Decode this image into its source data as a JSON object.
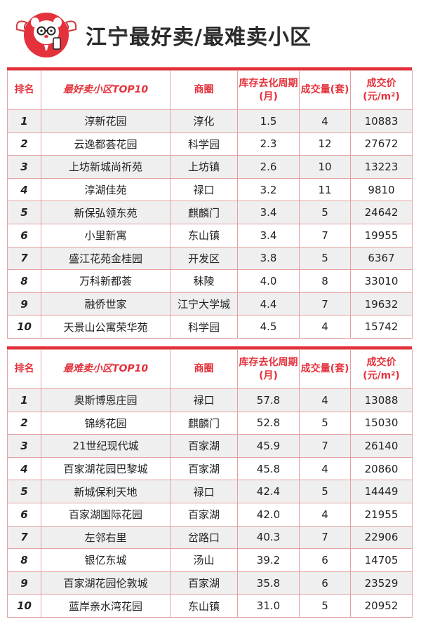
{
  "header": {
    "title": "江宁最好卖/最难卖小区"
  },
  "colors": {
    "accent": "#e4323c",
    "border": "#e4a0a0",
    "stripe": "#efefef"
  },
  "best_table": {
    "headers": {
      "rank": "排名",
      "name": "最好卖小区TOP10",
      "area": "商圈",
      "cycle": "库存去化周期(月)",
      "volume": "成交量(套)",
      "price": "成交价(元/m²)"
    },
    "rows": [
      {
        "rank": "1",
        "name": "淳新花园",
        "area": "淳化",
        "cycle": "1.5",
        "volume": "4",
        "price": "10883"
      },
      {
        "rank": "2",
        "name": "云逸都荟花园",
        "area": "科学园",
        "cycle": "2.3",
        "volume": "12",
        "price": "27672"
      },
      {
        "rank": "3",
        "name": "上坊新城尚祈苑",
        "area": "上坊镇",
        "cycle": "2.6",
        "volume": "10",
        "price": "13223"
      },
      {
        "rank": "4",
        "name": "淳湖佳苑",
        "area": "禄口",
        "cycle": "3.2",
        "volume": "11",
        "price": "9810"
      },
      {
        "rank": "5",
        "name": "新保弘领东苑",
        "area": "麒麟门",
        "cycle": "3.4",
        "volume": "5",
        "price": "24642"
      },
      {
        "rank": "6",
        "name": "小里新寓",
        "area": "东山镇",
        "cycle": "3.4",
        "volume": "7",
        "price": "19955"
      },
      {
        "rank": "7",
        "name": "盛江花苑金桂园",
        "area": "开发区",
        "cycle": "3.8",
        "volume": "5",
        "price": "6367"
      },
      {
        "rank": "8",
        "name": "万科新都荟",
        "area": "秣陵",
        "cycle": "4.0",
        "volume": "8",
        "price": "33010"
      },
      {
        "rank": "9",
        "name": "融侨世家",
        "area": "江宁大学城",
        "cycle": "4.4",
        "volume": "7",
        "price": "19632"
      },
      {
        "rank": "10",
        "name": "天景山公寓荣华苑",
        "area": "科学园",
        "cycle": "4.5",
        "volume": "4",
        "price": "15742"
      }
    ]
  },
  "worst_table": {
    "headers": {
      "rank": "排名",
      "name": "最难卖小区TOP10",
      "area": "商圈",
      "cycle": "库存去化周期(月)",
      "volume": "成交量(套)",
      "price": "成交价(元/m²)"
    },
    "rows": [
      {
        "rank": "1",
        "name": "奥斯博恩庄园",
        "area": "禄口",
        "cycle": "57.8",
        "volume": "4",
        "price": "13088"
      },
      {
        "rank": "2",
        "name": "锦绣花园",
        "area": "麒麟门",
        "cycle": "52.8",
        "volume": "5",
        "price": "15030"
      },
      {
        "rank": "3",
        "name": "21世纪现代城",
        "area": "百家湖",
        "cycle": "45.9",
        "volume": "7",
        "price": "26140"
      },
      {
        "rank": "4",
        "name": "百家湖花园巴黎城",
        "area": "百家湖",
        "cycle": "45.8",
        "volume": "4",
        "price": "20860"
      },
      {
        "rank": "5",
        "name": "新城保利天地",
        "area": "禄口",
        "cycle": "42.4",
        "volume": "5",
        "price": "14449"
      },
      {
        "rank": "6",
        "name": "百家湖国际花园",
        "area": "百家湖",
        "cycle": "42.0",
        "volume": "4",
        "price": "21955"
      },
      {
        "rank": "7",
        "name": "左邻右里",
        "area": "岔路口",
        "cycle": "40.3",
        "volume": "7",
        "price": "22906"
      },
      {
        "rank": "8",
        "name": "银亿东城",
        "area": "汤山",
        "cycle": "39.2",
        "volume": "6",
        "price": "14705"
      },
      {
        "rank": "9",
        "name": "百家湖花园伦敦城",
        "area": "百家湖",
        "cycle": "35.8",
        "volume": "6",
        "price": "23529"
      },
      {
        "rank": "10",
        "name": "蓝岸亲水湾花园",
        "area": "东山镇",
        "cycle": "31.0",
        "volume": "5",
        "price": "20952"
      }
    ]
  }
}
